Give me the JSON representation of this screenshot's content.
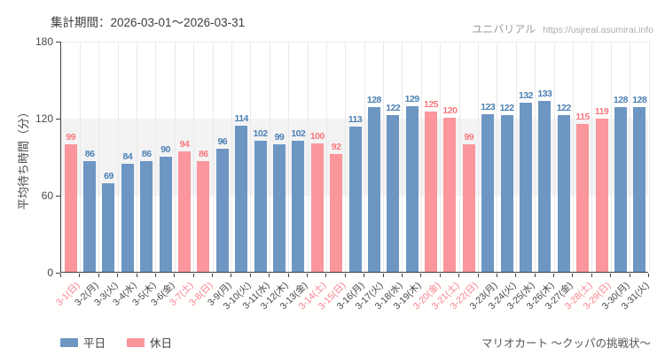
{
  "header": {
    "period_label": "集計期間：2026-03-01～2026-03-31"
  },
  "watermark": {
    "site_name": "ユニバリアル",
    "url": "https://usjreal.asumirai.info"
  },
  "footer": {
    "attraction": "マリオカート ～クッパの挑戦状～"
  },
  "legend": {
    "weekday_label": "平日",
    "holiday_label": "休日"
  },
  "colors": {
    "weekday_bar": "#6d96c3",
    "holiday_bar": "#fa969c",
    "weekday_value_text": "#4a80b4",
    "holiday_value_text": "#f8777d",
    "holiday_axis_text": "#f8808a",
    "axis": "#3f3f46",
    "grid": "#e9e9e9",
    "band": "#f3f3f4"
  },
  "chart_data": {
    "type": "bar",
    "title": "集計期間：2026-03-01～2026-03-31",
    "xlabel": "",
    "ylabel": "平均待ち時間（分）",
    "ylim": [
      0,
      180
    ],
    "yticks": [
      0,
      60,
      120,
      180
    ],
    "shaded_band_y": [
      60,
      120
    ],
    "grid": "on",
    "legend_position": "bottom-left",
    "categories": [
      "3-1(日)",
      "3-2(月)",
      "3-3(火)",
      "3-4(水)",
      "3-5(木)",
      "3-6(金)",
      "3-7(土)",
      "3-8(日)",
      "3-9(月)",
      "3-10(火)",
      "3-11(水)",
      "3-12(木)",
      "3-13(金)",
      "3-14(土)",
      "3-15(日)",
      "3-16(月)",
      "3-17(火)",
      "3-18(水)",
      "3-19(木)",
      "3-20(金)",
      "3-21(土)",
      "3-22(日)",
      "3-23(月)",
      "3-24(火)",
      "3-25(水)",
      "3-26(木)",
      "3-27(金)",
      "3-28(土)",
      "3-29(日)",
      "3-30(月)",
      "3-31(火)"
    ],
    "values": [
      99,
      86,
      69,
      84,
      86,
      90,
      94,
      86,
      96,
      114,
      102,
      99,
      102,
      100,
      92,
      113,
      128,
      122,
      129,
      125,
      120,
      99,
      123,
      122,
      132,
      133,
      122,
      115,
      119,
      128,
      128
    ],
    "day_type": [
      "holiday",
      "weekday",
      "weekday",
      "weekday",
      "weekday",
      "weekday",
      "holiday",
      "holiday",
      "weekday",
      "weekday",
      "weekday",
      "weekday",
      "weekday",
      "holiday",
      "holiday",
      "weekday",
      "weekday",
      "weekday",
      "weekday",
      "holiday",
      "holiday",
      "holiday",
      "weekday",
      "weekday",
      "weekday",
      "weekday",
      "weekday",
      "holiday",
      "holiday",
      "weekday",
      "weekday"
    ],
    "series": [
      {
        "name": "平日",
        "color": "#6d96c3"
      },
      {
        "name": "休日",
        "color": "#fa969c"
      }
    ]
  }
}
